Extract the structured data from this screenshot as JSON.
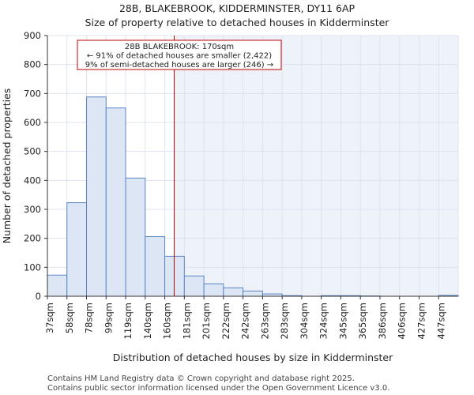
{
  "chart_data": {
    "type": "bar",
    "title_lines": [
      "28B, BLAKEBROOK, KIDDERMINSTER, DY11 6AP",
      "Size of property relative to detached houses in Kidderminster"
    ],
    "xlabel": "Distribution of detached houses by size in Kidderminster",
    "ylabel": "Number of detached properties",
    "categories": [
      "37sqm",
      "58sqm",
      "78sqm",
      "99sqm",
      "119sqm",
      "140sqm",
      "160sqm",
      "181sqm",
      "201sqm",
      "222sqm",
      "242sqm",
      "263sqm",
      "283sqm",
      "304sqm",
      "324sqm",
      "345sqm",
      "365sqm",
      "386sqm",
      "406sqm",
      "427sqm",
      "447sqm"
    ],
    "values": [
      73,
      323,
      688,
      650,
      408,
      206,
      138,
      70,
      43,
      29,
      18,
      8,
      2,
      0,
      2,
      2,
      1,
      0,
      0,
      0,
      3
    ],
    "ylim": [
      0,
      900
    ],
    "yticks": [
      0,
      100,
      200,
      300,
      400,
      500,
      600,
      700,
      800,
      900
    ],
    "grid": true,
    "marker": {
      "value_index": 6.48,
      "annotation_lines": [
        "28B BLAKEBROOK: 170sqm",
        "← 91% of detached houses are smaller (2,422)",
        "9% of semi-detached houses are larger (246) →"
      ]
    },
    "colors": {
      "bar_fill": "#dce6f4",
      "bar_stroke": "#5b84c4",
      "marker_line": "#c00000",
      "highlight_region": "#eef2f9",
      "grid": "#dde3ee"
    }
  },
  "footer": {
    "line1": "Contains HM Land Registry data © Crown copyright and database right 2025.",
    "line2": "Contains public sector information licensed under the Open Government Licence v3.0."
  }
}
